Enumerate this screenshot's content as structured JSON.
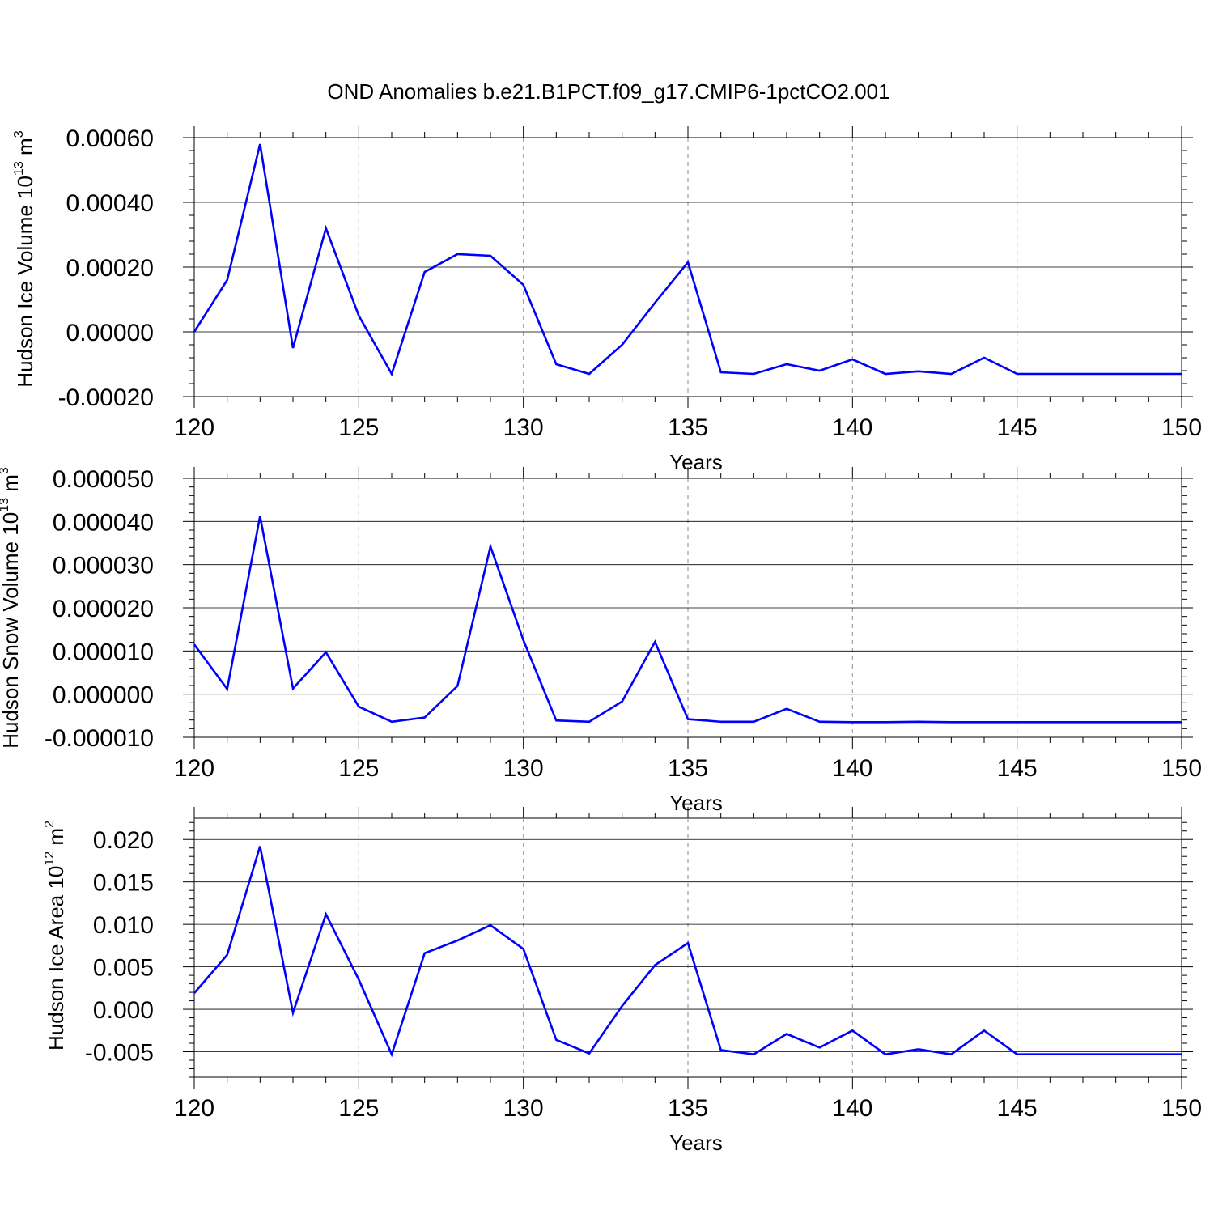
{
  "figure": {
    "title": "OND Anomalies b.e21.B1PCT.f09_g17.CMIP6-1pctCO2.001",
    "line_color": "#0000ff",
    "grid_color": "#a0a0a0"
  },
  "chart_data": [
    {
      "type": "line",
      "title": "",
      "xlabel": "Years",
      "ylabel": {
        "main": "Hudson Ice Volume 10",
        "exp": "13",
        "unit": " m",
        "unit_exp": "3"
      },
      "xlim": [
        120,
        150
      ],
      "ylim": [
        -0.0002,
        0.0006
      ],
      "xticks": [
        120,
        125,
        130,
        135,
        140,
        145,
        150
      ],
      "xtick_labels": [
        "120",
        "125",
        "130",
        "135",
        "140",
        "145",
        "150"
      ],
      "yticks": [
        -0.0002,
        0.0,
        0.0002,
        0.0004,
        0.0006
      ],
      "ytick_labels": [
        "-0.00020",
        "0.00000",
        "0.00020",
        "0.00040",
        "0.00060"
      ],
      "grid": "vertical dashed at major x ticks",
      "x": [
        120,
        121,
        122,
        123,
        124,
        125,
        126,
        127,
        128,
        129,
        130,
        131,
        132,
        133,
        134,
        135,
        136,
        137,
        138,
        139,
        140,
        141,
        142,
        143,
        144,
        145,
        146,
        147,
        148,
        149,
        150
      ],
      "values": [
        0.0,
        0.00016,
        0.00058,
        -5e-05,
        0.00032,
        5e-05,
        -0.00013,
        0.000185,
        0.00024,
        0.000235,
        0.000145,
        -0.0001,
        -0.00013,
        -4e-05,
        9e-05,
        0.000215,
        -0.000125,
        -0.00013,
        -0.0001,
        -0.00012,
        -8.5e-05,
        -0.00013,
        -0.000122,
        -0.00013,
        -8e-05,
        -0.00013,
        -0.00013,
        -0.00013,
        -0.00013,
        -0.00013,
        -0.00013
      ]
    },
    {
      "type": "line",
      "title": "",
      "xlabel": "Years",
      "ylabel": {
        "main": "Hudson Snow Volume 10",
        "exp": "13",
        "unit": " m",
        "unit_exp": "3"
      },
      "xlim": [
        120,
        150
      ],
      "ylim": [
        -1e-05,
        5e-05
      ],
      "xticks": [
        120,
        125,
        130,
        135,
        140,
        145,
        150
      ],
      "xtick_labels": [
        "120",
        "125",
        "130",
        "135",
        "140",
        "145",
        "150"
      ],
      "yticks": [
        -1e-05,
        0.0,
        1e-05,
        2e-05,
        3e-05,
        4e-05,
        5e-05
      ],
      "ytick_labels": [
        "-0.000010",
        "0.000000",
        "0.000010",
        "0.000020",
        "0.000030",
        "0.000040",
        "0.000050"
      ],
      "grid": "vertical dashed at major x ticks",
      "x": [
        120,
        121,
        122,
        123,
        124,
        125,
        126,
        127,
        128,
        129,
        130,
        131,
        132,
        133,
        134,
        135,
        136,
        137,
        138,
        139,
        140,
        141,
        142,
        143,
        144,
        145,
        146,
        147,
        148,
        149,
        150
      ],
      "values": [
        1.15e-05,
        1.2e-06,
        4.12e-05,
        1.3e-06,
        9.7e-06,
        -2.9e-06,
        -6.4e-06,
        -5.4e-06,
        1.9e-06,
        3.42e-05,
        1.25e-05,
        -6.1e-06,
        -6.4e-06,
        -1.7e-06,
        1.21e-05,
        -5.8e-06,
        -6.4e-06,
        -6.4e-06,
        -3.4e-06,
        -6.4e-06,
        -6.5e-06,
        -6.5e-06,
        -6.4e-06,
        -6.5e-06,
        -6.5e-06,
        -6.5e-06,
        -6.5e-06,
        -6.5e-06,
        -6.5e-06,
        -6.5e-06,
        -6.5e-06
      ]
    },
    {
      "type": "line",
      "title": "",
      "xlabel": "Years",
      "ylabel": {
        "main": "Hudson Ice Area 10",
        "exp": "12",
        "unit": " m",
        "unit_exp": "2"
      },
      "xlim": [
        120,
        150
      ],
      "ylim": [
        -0.008,
        0.0225
      ],
      "xticks": [
        120,
        125,
        130,
        135,
        140,
        145,
        150
      ],
      "xtick_labels": [
        "120",
        "125",
        "130",
        "135",
        "140",
        "145",
        "150"
      ],
      "yticks": [
        -0.005,
        0.0,
        0.005,
        0.01,
        0.015,
        0.02
      ],
      "ytick_labels": [
        "-0.005",
        "0.000",
        "0.005",
        "0.010",
        "0.015",
        "0.020"
      ],
      "grid": "vertical dashed at major x ticks",
      "x": [
        120,
        121,
        122,
        123,
        124,
        125,
        126,
        127,
        128,
        129,
        130,
        131,
        132,
        133,
        134,
        135,
        136,
        137,
        138,
        139,
        140,
        141,
        142,
        143,
        144,
        145,
        146,
        147,
        148,
        149,
        150
      ],
      "values": [
        0.0019,
        0.0064,
        0.0192,
        -0.0004,
        0.0112,
        0.0035,
        -0.0053,
        0.0066,
        0.0081,
        0.0099,
        0.0071,
        -0.0036,
        -0.0052,
        0.0004,
        0.0052,
        0.0078,
        -0.0048,
        -0.0053,
        -0.0029,
        -0.0045,
        -0.0025,
        -0.0053,
        -0.0047,
        -0.0053,
        -0.0025,
        -0.0053,
        -0.0053,
        -0.0053,
        -0.0053,
        -0.0053,
        -0.0053
      ]
    }
  ]
}
